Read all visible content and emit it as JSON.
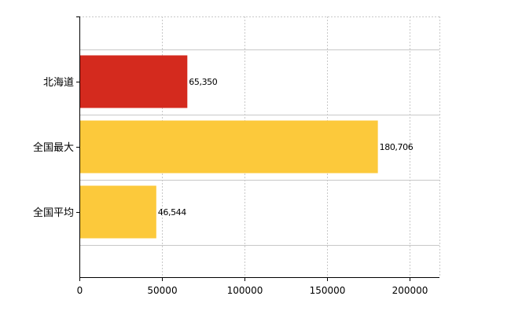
{
  "chart_data": {
    "type": "bar",
    "orientation": "horizontal",
    "categories": [
      "北海道",
      "全国最大",
      "全国平均"
    ],
    "values": [
      65350,
      180706,
      46544
    ],
    "data_labels": [
      "65,350",
      "180,706",
      "46,544"
    ],
    "bar_colors": [
      "#d42a1e",
      "#fcc93b",
      "#fcc93b"
    ],
    "xlim": [
      0,
      218000
    ],
    "x_ticks": [
      0,
      50000,
      100000,
      150000,
      200000
    ],
    "x_tick_labels": [
      "0",
      "50000",
      "100000",
      "150000",
      "200000"
    ],
    "grid": true,
    "grid_color": "#c8c8c8",
    "title": "",
    "xlabel": "",
    "ylabel": ""
  }
}
